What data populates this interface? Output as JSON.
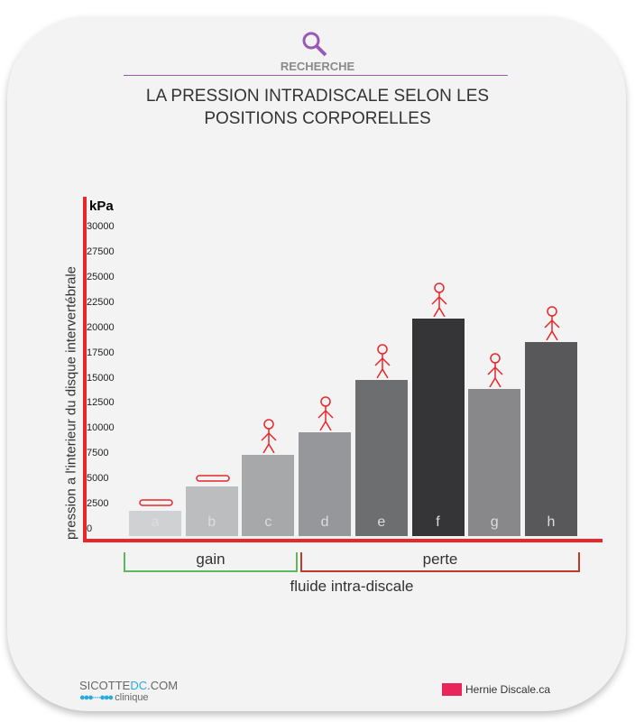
{
  "header": {
    "category": "RECHERCHE",
    "title_line1": "LA PRESSION INTRADISCALE SELON LES",
    "title_line2": "POSITIONS CORPORELLES"
  },
  "chart_data": {
    "type": "bar",
    "title": "LA PRESSION INTRADISCALE SELON LES POSITIONS CORPORELLES",
    "ylabel": "pression a l'interieur du disque intervertébrale",
    "yunit": "kPa",
    "xlabel": "fluide intra-discale",
    "ylim": [
      0,
      30000
    ],
    "yticks": [
      "0",
      "2500",
      "5000",
      "7500",
      "10000",
      "12500",
      "15000",
      "17500",
      "20000",
      "22500",
      "25000",
      "27500",
      "30000"
    ],
    "categories": [
      "a",
      "b",
      "c",
      "d",
      "e",
      "f",
      "g",
      "h"
    ],
    "values": [
      1900,
      4300,
      7400,
      9700,
      14900,
      21000,
      14000,
      18600
    ],
    "colors": [
      "#d0d1d3",
      "#bcbdbf",
      "#a7a8aa",
      "#96979a",
      "#6d6e70",
      "#353537",
      "#88888b",
      "#58585a"
    ],
    "groups": [
      {
        "label": "gain",
        "color": "#5cb85c"
      },
      {
        "label": "perte",
        "color": "#c0392b"
      }
    ]
  },
  "footer": {
    "brand_left_a": "SICOTTE",
    "brand_left_b": "DC",
    "brand_left_c": ".COM",
    "brand_left_sub": "clinique",
    "brand_right": "Hernie Discale.ca"
  }
}
